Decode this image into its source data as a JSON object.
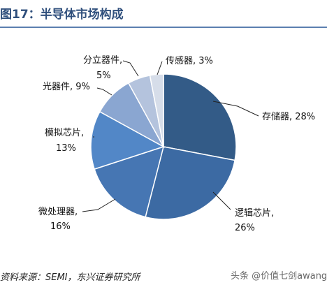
{
  "header": {
    "title": "图17：半导体市场构成"
  },
  "chart_data": {
    "type": "pie",
    "title": "图17：半导体市场构成",
    "slices": [
      {
        "name": "存储器",
        "value": 28,
        "label_line1": "存储器, 28%",
        "label_line2": "",
        "color": "#335b87"
      },
      {
        "name": "逻辑芯片",
        "value": 26,
        "label_line1": "逻辑芯片,",
        "label_line2": "26%",
        "color": "#3c6aa3"
      },
      {
        "name": "微处理器",
        "value": 16,
        "label_line1": "微处理器,",
        "label_line2": "16%",
        "color": "#4676b3"
      },
      {
        "name": "模拟芯片",
        "value": 13,
        "label_line1": "模拟芯片,",
        "label_line2": "13%",
        "color": "#5287c7"
      },
      {
        "name": "光器件",
        "value": 9,
        "label_line1": "光器件, 9%",
        "label_line2": "",
        "color": "#8aa6d1"
      },
      {
        "name": "分立器件",
        "value": 5,
        "label_line1": "分立器件,",
        "label_line2": "5%",
        "color": "#b4c3dd"
      },
      {
        "name": "传感器",
        "value": 3,
        "label_line1": "传感器, 3%",
        "label_line2": "",
        "color": "#d6dde9"
      }
    ]
  },
  "footer": {
    "source": "资料来源：SEMI，东兴证券研究所",
    "watermark": "头条 @价值七剑awang"
  }
}
